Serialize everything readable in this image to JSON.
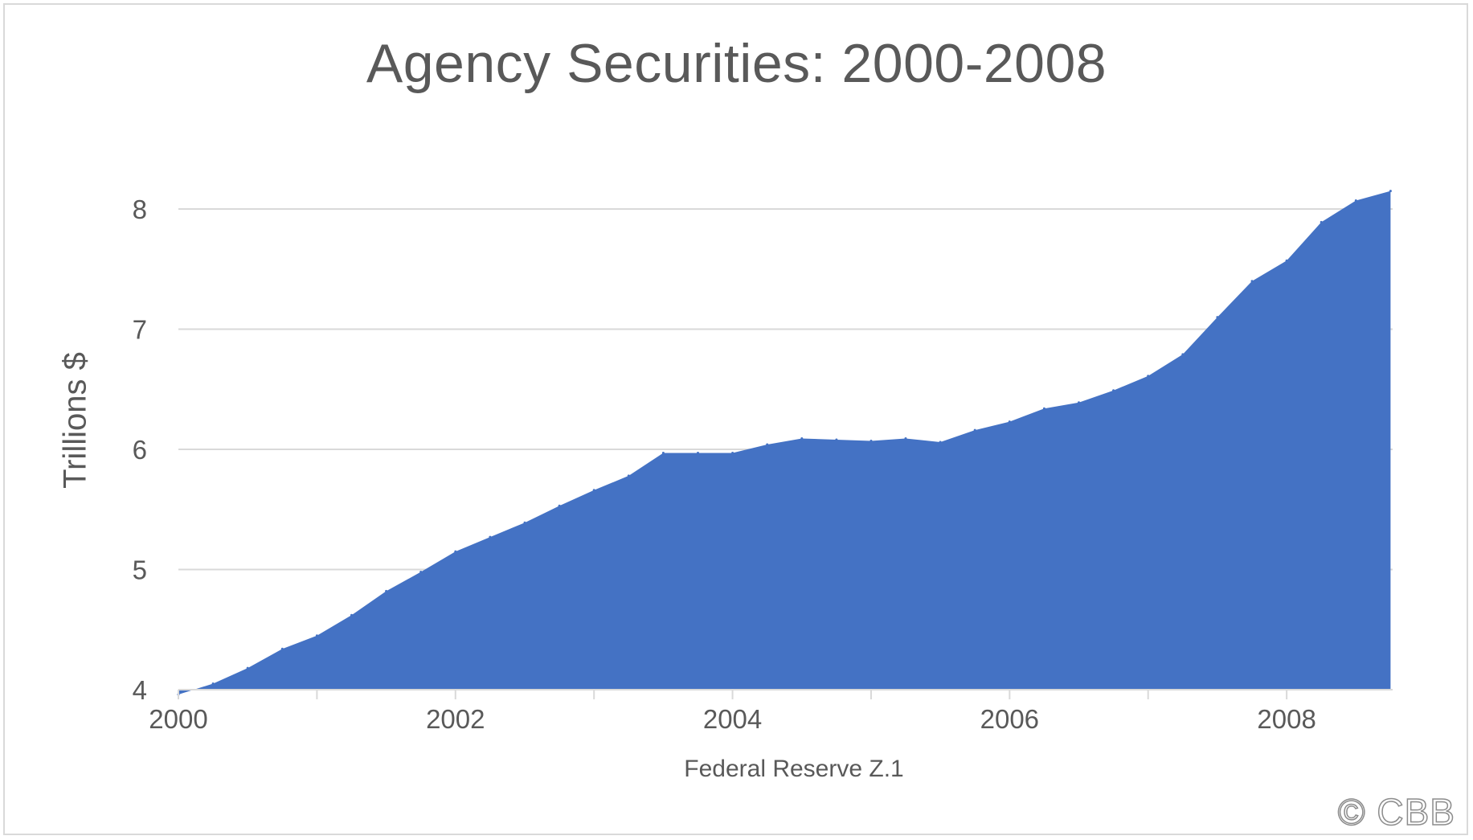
{
  "chart_data": {
    "type": "area",
    "title": "Agency Securities: 2000-2008",
    "xlabel": "Federal Reserve Z.1",
    "ylabel": "Trillions $",
    "xlim": [
      2000,
      2008.75
    ],
    "ylim": [
      4,
      8.2
    ],
    "x_ticks": [
      2000,
      2002,
      2004,
      2006,
      2008
    ],
    "y_ticks": [
      4,
      5,
      6,
      7,
      8
    ],
    "grid": "horizontal",
    "legend": "none",
    "color": "#4472c4",
    "x": [
      2000.0,
      2000.25,
      2000.5,
      2000.75,
      2001.0,
      2001.25,
      2001.5,
      2001.75,
      2002.0,
      2002.25,
      2002.5,
      2002.75,
      2003.0,
      2003.25,
      2003.5,
      2003.75,
      2004.0,
      2004.25,
      2004.5,
      2004.75,
      2005.0,
      2005.25,
      2005.5,
      2005.75,
      2006.0,
      2006.25,
      2006.5,
      2006.75,
      2007.0,
      2007.25,
      2007.5,
      2007.75,
      2008.0,
      2008.25,
      2008.5,
      2008.75
    ],
    "values": [
      3.96,
      4.05,
      4.18,
      4.34,
      4.45,
      4.62,
      4.82,
      4.98,
      5.15,
      5.27,
      5.39,
      5.53,
      5.66,
      5.78,
      5.97,
      5.97,
      5.97,
      6.04,
      6.09,
      6.08,
      6.07,
      6.09,
      6.06,
      6.16,
      6.23,
      6.34,
      6.39,
      6.49,
      6.61,
      6.79,
      7.1,
      7.4,
      7.57,
      7.89,
      8.07,
      8.15
    ]
  },
  "watermark": "© CBB"
}
